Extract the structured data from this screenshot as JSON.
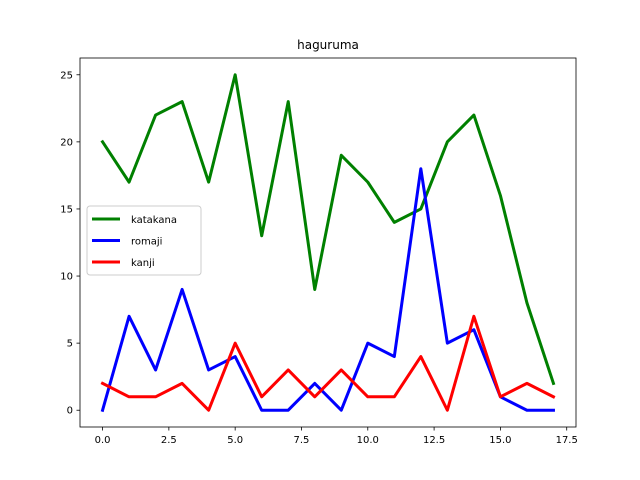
{
  "chart_data": {
    "type": "line",
    "title": "haguruma",
    "xlabel": "",
    "ylabel": "",
    "x": [
      0,
      1,
      2,
      3,
      4,
      5,
      6,
      7,
      8,
      9,
      10,
      11,
      12,
      13,
      14,
      15,
      16,
      17
    ],
    "xlim": [
      -0.85,
      17.85
    ],
    "ylim": [
      -1.25,
      26.25
    ],
    "xticks": [
      0,
      2.5,
      5,
      7.5,
      10,
      12.5,
      15,
      17.5
    ],
    "xtick_labels": [
      "0.0",
      "2.5",
      "5.0",
      "7.5",
      "10.0",
      "12.5",
      "15.0",
      "17.5"
    ],
    "yticks": [
      0,
      5,
      10,
      15,
      20,
      25
    ],
    "ytick_labels": [
      "0",
      "5",
      "10",
      "15",
      "20",
      "25"
    ],
    "grid": false,
    "legend_position": "center-left",
    "series": [
      {
        "name": "katakana",
        "color": "#008000",
        "values": [
          20,
          17,
          22,
          23,
          17,
          25,
          13,
          23,
          9,
          19,
          17,
          14,
          15,
          20,
          22,
          16,
          8,
          2
        ]
      },
      {
        "name": "romaji",
        "color": "#0000ff",
        "values": [
          0,
          7,
          3,
          9,
          3,
          4,
          0,
          0,
          2,
          0,
          5,
          4,
          18,
          5,
          6,
          1,
          0,
          0
        ]
      },
      {
        "name": "kanji",
        "color": "#ff0000",
        "values": [
          2,
          1,
          1,
          2,
          0,
          5,
          1,
          3,
          1,
          3,
          1,
          1,
          4,
          0,
          7,
          1,
          2,
          1
        ]
      }
    ]
  }
}
